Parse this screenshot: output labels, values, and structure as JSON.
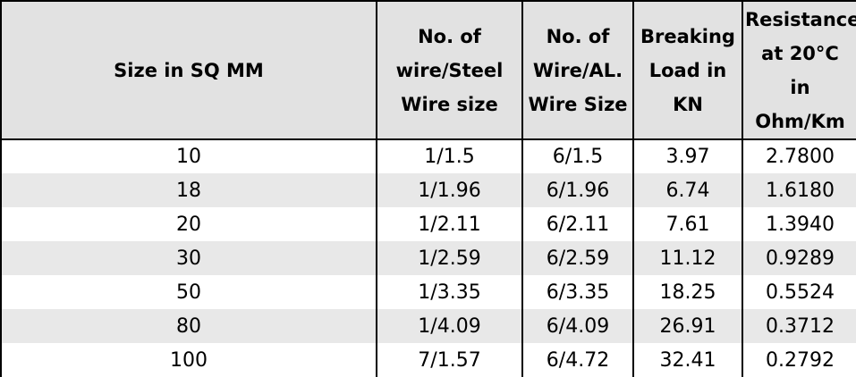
{
  "table": {
    "headers": [
      [
        "Size in SQ MM"
      ],
      [
        "No. of",
        "wire/Steel",
        "Wire size"
      ],
      [
        "No. of",
        "Wire/AL.",
        "Wire Size"
      ],
      [
        "Breaking",
        "Load in",
        "KN"
      ],
      [
        "Resistance",
        "at 20°C",
        "in",
        "Ohm/Km"
      ]
    ],
    "rows": [
      [
        "10",
        "1/1.5",
        "6/1.5",
        "3.97",
        "2.7800"
      ],
      [
        "18",
        "1/1.96",
        "6/1.96",
        "6.74",
        "1.6180"
      ],
      [
        "20",
        "1/2.11",
        "6/2.11",
        "7.61",
        "1.3940"
      ],
      [
        "30",
        "1/2.59",
        "6/2.59",
        "11.12",
        "0.9289"
      ],
      [
        "50",
        "1/3.35",
        "6/3.35",
        "18.25",
        "0.5524"
      ],
      [
        "80",
        "1/4.09",
        "6/4.09",
        "26.91",
        "0.3712"
      ],
      [
        "100",
        "7/1.57",
        "6/4.72",
        "32.41",
        "0.2792"
      ]
    ]
  },
  "colors": {
    "header_bg": "#e2e2e2",
    "stripe_bg": "#e8e8e8",
    "border": "#000000"
  }
}
